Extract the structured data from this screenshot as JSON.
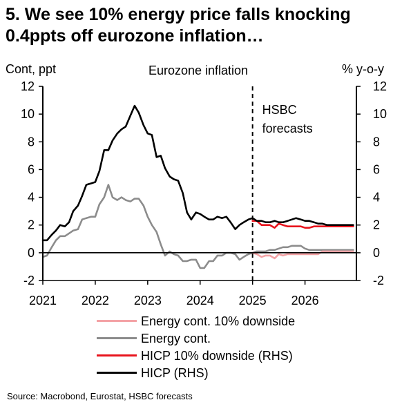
{
  "title": "5. We see 10% energy price falls knocking 0.4ppts off eurozone inflation…",
  "source": "Source: Macrobond, Eurostat, HSBC forecasts",
  "colors": {
    "hicp": "#000000",
    "hicp_downside": "#e8131c",
    "energy": "#8c8c8c",
    "energy_downside": "#f4a3a6"
  },
  "chart_data": {
    "type": "line",
    "title": "Eurozone inflation",
    "ylabel_left": "Cont, ppt",
    "ylabel_right": "% y-o-y",
    "ylim": [
      -2,
      12
    ],
    "yticks": [
      -2,
      0,
      2,
      4,
      6,
      8,
      10,
      12
    ],
    "xlim": [
      2021.0,
      2026.98
    ],
    "xticks": [
      "2021",
      "2022",
      "2023",
      "2024",
      "2025",
      "2026"
    ],
    "annotation": {
      "text_line1": "HSBC",
      "text_line2": "forecasts",
      "x": 2025.0
    },
    "series": [
      {
        "name": "HICP (RHS)",
        "color_key": "hicp",
        "x": [
          2021.0,
          2021.08,
          2021.17,
          2021.25,
          2021.33,
          2021.42,
          2021.5,
          2021.58,
          2021.67,
          2021.75,
          2021.83,
          2021.92,
          2022.0,
          2022.08,
          2022.17,
          2022.25,
          2022.33,
          2022.42,
          2022.5,
          2022.58,
          2022.67,
          2022.75,
          2022.83,
          2022.92,
          2023.0,
          2023.08,
          2023.17,
          2023.25,
          2023.33,
          2023.42,
          2023.5,
          2023.58,
          2023.67,
          2023.75,
          2023.83,
          2023.92,
          2024.0,
          2024.08,
          2024.17,
          2024.25,
          2024.33,
          2024.42,
          2024.5,
          2024.58,
          2024.67,
          2024.75,
          2024.83,
          2024.92,
          2025.0,
          2025.08,
          2025.17,
          2025.25,
          2025.33,
          2025.42,
          2025.5,
          2025.58,
          2025.67,
          2025.75,
          2025.83,
          2025.92,
          2026.0,
          2026.08,
          2026.17,
          2026.25,
          2026.33,
          2026.42,
          2026.5,
          2026.58,
          2026.67,
          2026.75,
          2026.83,
          2026.92
        ],
        "values": [
          0.9,
          0.9,
          1.3,
          1.6,
          2.0,
          1.9,
          2.2,
          3.0,
          3.4,
          4.1,
          4.9,
          5.0,
          5.1,
          5.9,
          7.4,
          7.4,
          8.1,
          8.6,
          8.9,
          9.1,
          9.9,
          10.6,
          10.1,
          9.2,
          8.6,
          8.5,
          6.9,
          7.0,
          6.1,
          5.5,
          5.3,
          5.2,
          4.3,
          2.9,
          2.4,
          2.9,
          2.8,
          2.6,
          2.4,
          2.4,
          2.6,
          2.5,
          2.6,
          2.2,
          1.7,
          2.0,
          2.2,
          2.4,
          2.5,
          2.3,
          2.3,
          2.2,
          2.2,
          2.3,
          2.2,
          2.2,
          2.3,
          2.4,
          2.5,
          2.4,
          2.3,
          2.3,
          2.2,
          2.1,
          2.1,
          2.0,
          2.0,
          2.0,
          2.0,
          2.0,
          2.0,
          2.0
        ]
      },
      {
        "name": "HICP 10% downside (RHS)",
        "color_key": "hicp_downside",
        "x": [
          2025.0,
          2025.08,
          2025.17,
          2025.25,
          2025.33,
          2025.42,
          2025.5,
          2025.58,
          2025.67,
          2025.75,
          2025.83,
          2025.92,
          2026.0,
          2026.08,
          2026.17,
          2026.25,
          2026.33,
          2026.42,
          2026.5,
          2026.58,
          2026.67,
          2026.75,
          2026.83,
          2026.92
        ],
        "values": [
          2.3,
          2.3,
          2.0,
          2.0,
          2.0,
          1.8,
          2.1,
          2.0,
          1.9,
          1.9,
          1.9,
          1.9,
          1.8,
          1.8,
          1.9,
          1.9,
          1.9,
          1.9,
          1.9,
          1.9,
          1.9,
          1.9,
          1.9,
          1.9
        ]
      },
      {
        "name": "Energy cont.",
        "color_key": "energy",
        "x": [
          2021.0,
          2021.08,
          2021.17,
          2021.25,
          2021.33,
          2021.42,
          2021.5,
          2021.58,
          2021.67,
          2021.75,
          2021.83,
          2021.92,
          2022.0,
          2022.08,
          2022.17,
          2022.25,
          2022.33,
          2022.42,
          2022.5,
          2022.58,
          2022.67,
          2022.75,
          2022.83,
          2022.92,
          2023.0,
          2023.08,
          2023.17,
          2023.25,
          2023.33,
          2023.42,
          2023.5,
          2023.58,
          2023.67,
          2023.75,
          2023.83,
          2023.92,
          2024.0,
          2024.08,
          2024.17,
          2024.25,
          2024.33,
          2024.42,
          2024.5,
          2024.58,
          2024.67,
          2024.75,
          2024.83,
          2024.92,
          2025.0,
          2025.08,
          2025.17,
          2025.25,
          2025.33,
          2025.42,
          2025.5,
          2025.58,
          2025.67,
          2025.75,
          2025.83,
          2025.92,
          2026.0,
          2026.08,
          2026.17,
          2026.25,
          2026.33,
          2026.42,
          2026.5,
          2026.58,
          2026.67,
          2026.75,
          2026.83,
          2026.92
        ],
        "values": [
          -0.3,
          -0.2,
          0.4,
          0.9,
          1.2,
          1.2,
          1.4,
          1.6,
          1.7,
          2.4,
          2.5,
          2.6,
          2.6,
          3.5,
          4.0,
          4.9,
          4.0,
          3.8,
          4.0,
          3.8,
          3.7,
          3.9,
          3.9,
          3.4,
          2.6,
          2.0,
          1.5,
          0.6,
          -0.2,
          0.1,
          -0.1,
          -0.2,
          -0.6,
          -0.6,
          -0.5,
          -0.5,
          -1.1,
          -1.1,
          -0.6,
          -0.6,
          -0.2,
          -0.2,
          0.0,
          0.0,
          -0.1,
          -0.5,
          -0.3,
          -0.1,
          0.0,
          0.1,
          0.1,
          0.1,
          0.2,
          0.2,
          0.3,
          0.4,
          0.4,
          0.5,
          0.5,
          0.5,
          0.3,
          0.2,
          0.2,
          0.2,
          0.2,
          0.2,
          0.2,
          0.2,
          0.2,
          0.2,
          0.2,
          0.2
        ]
      },
      {
        "name": "Energy cont. 10% downside",
        "color_key": "energy_downside",
        "x": [
          2025.0,
          2025.08,
          2025.17,
          2025.25,
          2025.33,
          2025.42,
          2025.5,
          2025.58,
          2025.67,
          2025.75,
          2025.83,
          2025.92,
          2026.0,
          2026.08,
          2026.17,
          2026.25,
          2026.33,
          2026.42,
          2026.5,
          2026.58,
          2026.67,
          2026.75,
          2026.83,
          2026.92
        ],
        "values": [
          0.0,
          -0.1,
          -0.3,
          -0.2,
          -0.2,
          -0.4,
          -0.1,
          -0.2,
          -0.1,
          -0.1,
          -0.1,
          -0.1,
          -0.1,
          -0.1,
          -0.1,
          -0.1,
          0.1,
          0.1,
          0.1,
          0.1,
          0.1,
          0.1,
          0.1,
          0.1
        ]
      }
    ],
    "legend": [
      "Energy cont. 10% downside",
      "Energy cont.",
      "HICP 10% downside (RHS)",
      "HICP (RHS)"
    ],
    "legend_placement": "bottom"
  }
}
